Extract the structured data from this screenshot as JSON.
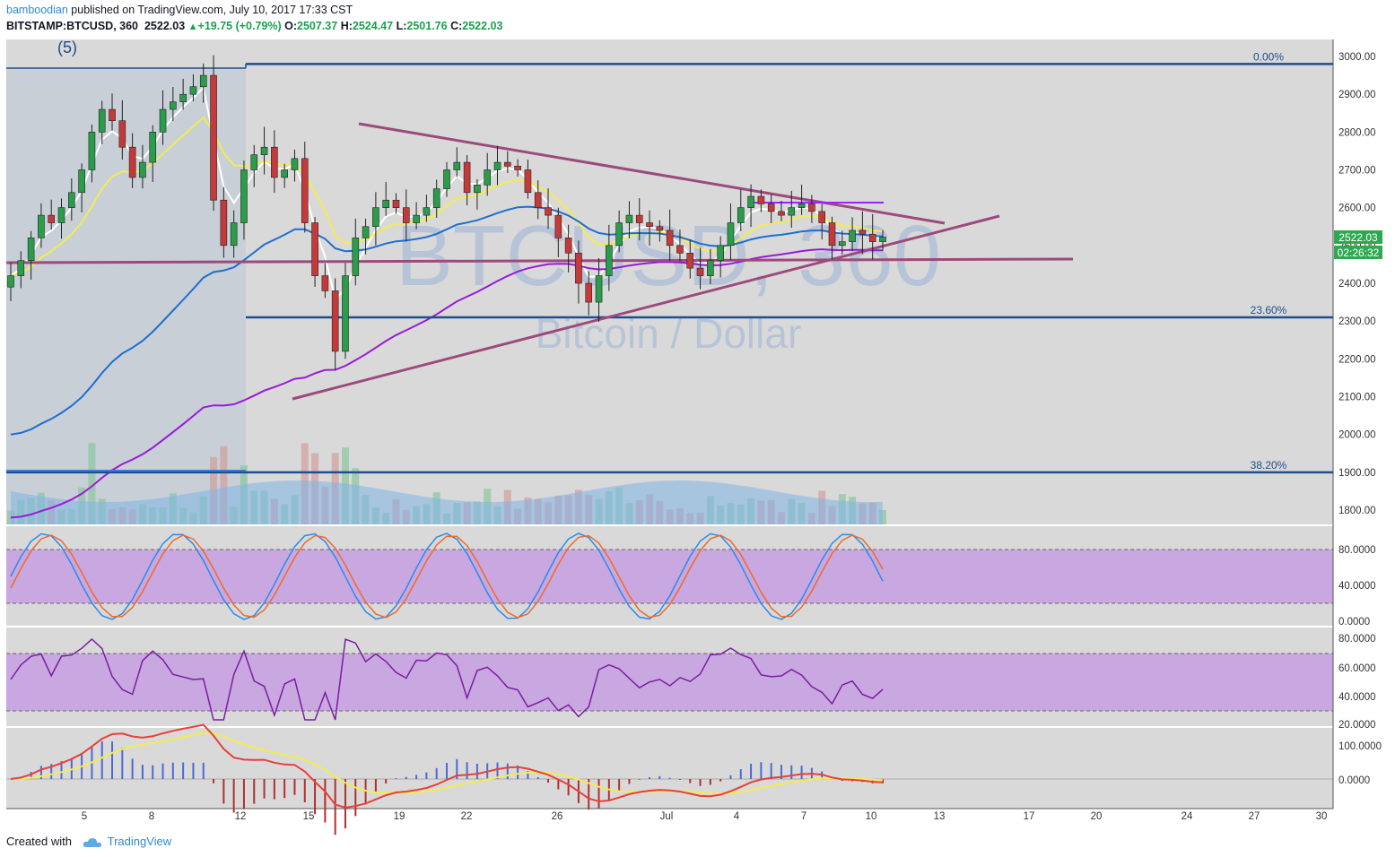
{
  "header": {
    "author": "bamboodian",
    "published_text": "published on TradingView.com, July 10, 2017 17:33 CST",
    "symbol": "BITSTAMP:BTCUSD, 360",
    "last": "2522.03",
    "change": "+19.75 (+0.79%)",
    "open_label": "O:",
    "open": "2507.37",
    "high_label": "H:",
    "high": "2524.47",
    "low_label": "L:",
    "low": "2501.76",
    "close_label": "C:",
    "close": "2522.03"
  },
  "wave_label": "(5)",
  "watermark": {
    "symbol": "BTCUSD, 360",
    "name": "Bitcoin / Dollar"
  },
  "fib_levels": [
    {
      "label": "0.00%",
      "price": 2980
    },
    {
      "label": "23.60%",
      "price": 2310
    },
    {
      "label": "38.20%",
      "price": 1900
    }
  ],
  "price_axis": {
    "ticks": [
      "3000.00",
      "2900.00",
      "2800.00",
      "2700.00",
      "2600.00",
      "2500.00",
      "2400.00",
      "2300.00",
      "2200.00",
      "2100.00",
      "2000.00",
      "1900.00",
      "1800.00"
    ],
    "last_price_tag": "2522.03",
    "countdown_tag": "02:26:32"
  },
  "stoch_axis": [
    "80.0000",
    "40.0000",
    "0.0000"
  ],
  "rsi_axis": [
    "80.0000",
    "60.0000",
    "40.0000",
    "20.0000"
  ],
  "macd_axis": [
    "100.0000",
    "0.0000"
  ],
  "time_axis": [
    "5",
    "8",
    "12",
    "15",
    "19",
    "22",
    "26",
    "Jul",
    "4",
    "7",
    "10",
    "13",
    "17",
    "20",
    "24",
    "27",
    "30"
  ],
  "footer": {
    "created_with": "Created with",
    "brand": "TradingView"
  },
  "colors": {
    "background": "#d9d9d9",
    "highlight": "#c4ccd6",
    "bull": "#2a9c4a",
    "bear": "#c43a3a",
    "fib_line": "#1f4e8c",
    "trendline": "#9c4a7c",
    "ema_white": "#ffffff",
    "ema_yellow": "#f2ec50",
    "ema_blue": "#1e6fd0",
    "ema_purple": "#9a1ad8",
    "osc_band": "#c9a7e0",
    "stoch_k": "#2b8ce8",
    "stoch_d": "#f06a2a",
    "rsi": "#7a1ea1",
    "price_tag": "#2fa84f"
  },
  "chart_data": {
    "type": "candlestick",
    "title": "BITSTAMP:BTCUSD, 360",
    "ylim": [
      1750,
      3050
    ],
    "close_series": [
      2420,
      2460,
      2520,
      2580,
      2560,
      2600,
      2640,
      2700,
      2800,
      2860,
      2830,
      2760,
      2680,
      2720,
      2800,
      2860,
      2880,
      2900,
      2920,
      2950,
      2620,
      2500,
      2560,
      2700,
      2740,
      2760,
      2680,
      2700,
      2730,
      2560,
      2420,
      2380,
      2220,
      2420,
      2520,
      2550,
      2600,
      2620,
      2600,
      2560,
      2580,
      2600,
      2650,
      2700,
      2720,
      2640,
      2660,
      2700,
      2720,
      2710,
      2700,
      2640,
      2600,
      2580,
      2520,
      2480,
      2400,
      2350,
      2420,
      2500,
      2560,
      2580,
      2560,
      2550,
      2540,
      2500,
      2480,
      2440,
      2420,
      2460,
      2500,
      2560,
      2600,
      2630,
      2610,
      2590,
      2580,
      2600,
      2610,
      2590,
      2560,
      2500,
      2510,
      2540,
      2530,
      2510,
      2522.03
    ],
    "last": 2522.03,
    "open": 2507.37,
    "high": 2524.47,
    "low": 2501.76,
    "close": 2522.03,
    "change": 19.75,
    "change_pct": 0.79
  }
}
